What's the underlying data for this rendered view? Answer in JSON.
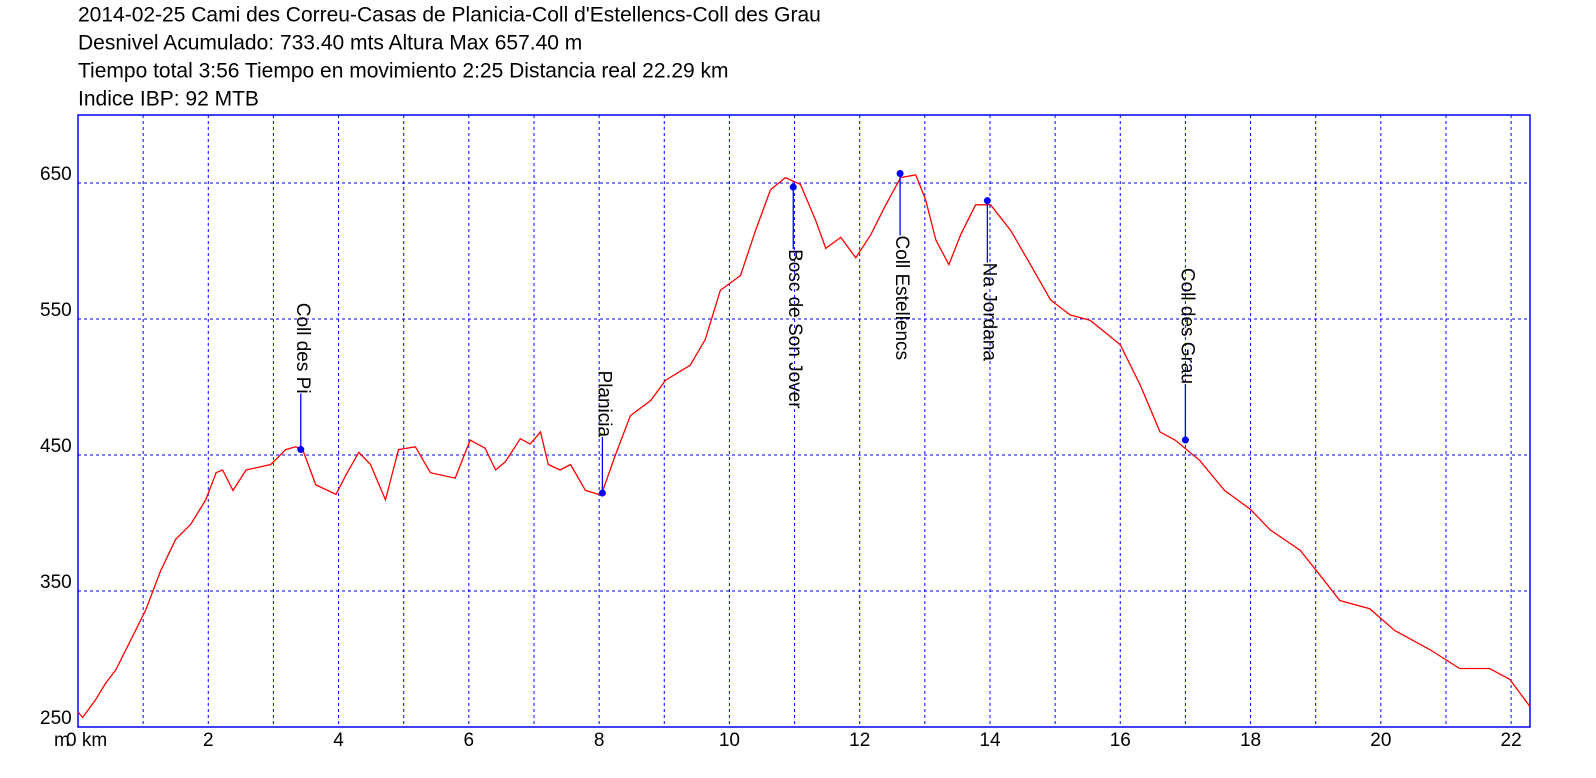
{
  "chart_data": {
    "type": "line",
    "title": "2014-02-25 Cami des Correu-Casas de Planicia-Coll d'Estellencs-Coll des Grau",
    "subtitle": [
      "Desnivel Acumulado: 733.40 mts  Altura Max 657.40 m",
      "Tiempo total 3:56 Tiempo en movimiento 2:25 Distancia real 22.29 km",
      "Indice IBP: 92 MTB"
    ],
    "y_label": "m",
    "xlim": [
      0,
      22.29
    ],
    "ylim": [
      250,
      700
    ],
    "xticks": [
      {
        "value": 0,
        "label": "0 km"
      },
      2,
      4,
      6,
      8,
      10,
      12,
      14,
      16,
      18,
      20,
      22
    ],
    "x_minor_ticks": [
      1,
      3,
      5,
      7,
      9,
      11,
      13,
      15,
      17,
      19,
      21
    ],
    "yticks": [
      250,
      350,
      450,
      550,
      650
    ],
    "grid": true,
    "series": [
      {
        "name": "Altura",
        "color": "#ff0000",
        "x": [
          0,
          0.07,
          0.27,
          0.42,
          0.58,
          0.81,
          1.04,
          1.27,
          1.5,
          1.73,
          1.96,
          2.12,
          2.22,
          2.38,
          2.58,
          2.96,
          3.19,
          3.34,
          3.45,
          3.65,
          3.96,
          4.11,
          4.31,
          4.49,
          4.72,
          4.92,
          5.18,
          5.41,
          5.79,
          6.02,
          6.25,
          6.41,
          6.56,
          6.79,
          6.94,
          7.1,
          7.22,
          7.4,
          7.56,
          7.79,
          7.99,
          8.05,
          8.25,
          8.48,
          8.79,
          9.02,
          9.4,
          9.63,
          9.86,
          10.17,
          10.4,
          10.63,
          10.86,
          11.09,
          11.32,
          11.48,
          11.71,
          11.94,
          12.17,
          12.4,
          12.63,
          12.86,
          13.01,
          13.17,
          13.37,
          13.55,
          13.78,
          14.01,
          14.32,
          14.62,
          14.93,
          15.23,
          15.54,
          16.0,
          16.31,
          16.61,
          16.84,
          17.22,
          17.6,
          18.0,
          18.3,
          18.76,
          19.06,
          19.37,
          19.83,
          20.21,
          20.75,
          21.21,
          21.67,
          21.98,
          22.29
        ],
        "values": [
          261,
          257,
          270,
          282,
          292,
          314,
          336,
          365,
          388,
          399,
          417,
          437,
          439,
          424,
          439,
          443,
          454,
          456,
          454,
          428,
          421,
          435,
          452,
          443,
          417,
          454,
          456,
          437,
          433,
          461,
          455,
          439,
          445,
          462,
          458,
          467,
          443,
          439,
          443,
          424,
          421,
          423,
          450,
          479,
          490,
          505,
          516,
          535,
          571,
          582,
          615,
          645,
          654,
          649,
          623,
          602,
          610,
          595,
          612,
          634,
          654,
          656,
          638,
          608,
          590,
          612,
          634,
          634,
          615,
          590,
          564,
          553,
          549,
          531,
          501,
          467,
          461,
          446,
          424,
          410,
          395,
          380,
          362,
          343,
          337,
          321,
          307,
          293,
          293,
          285,
          265
        ]
      }
    ],
    "waypoints": {
      "color": "#0000ff",
      "names": [
        "Coll des Pi",
        "Planicia",
        "Bosc de Son Jover",
        "Coll Estellencs",
        "Na Jordana",
        "Coll des Grau"
      ],
      "x": [
        3.42,
        8.05,
        10.98,
        12.62,
        13.96,
        17.0
      ],
      "values": [
        454,
        422,
        647,
        657,
        637,
        461
      ]
    }
  }
}
